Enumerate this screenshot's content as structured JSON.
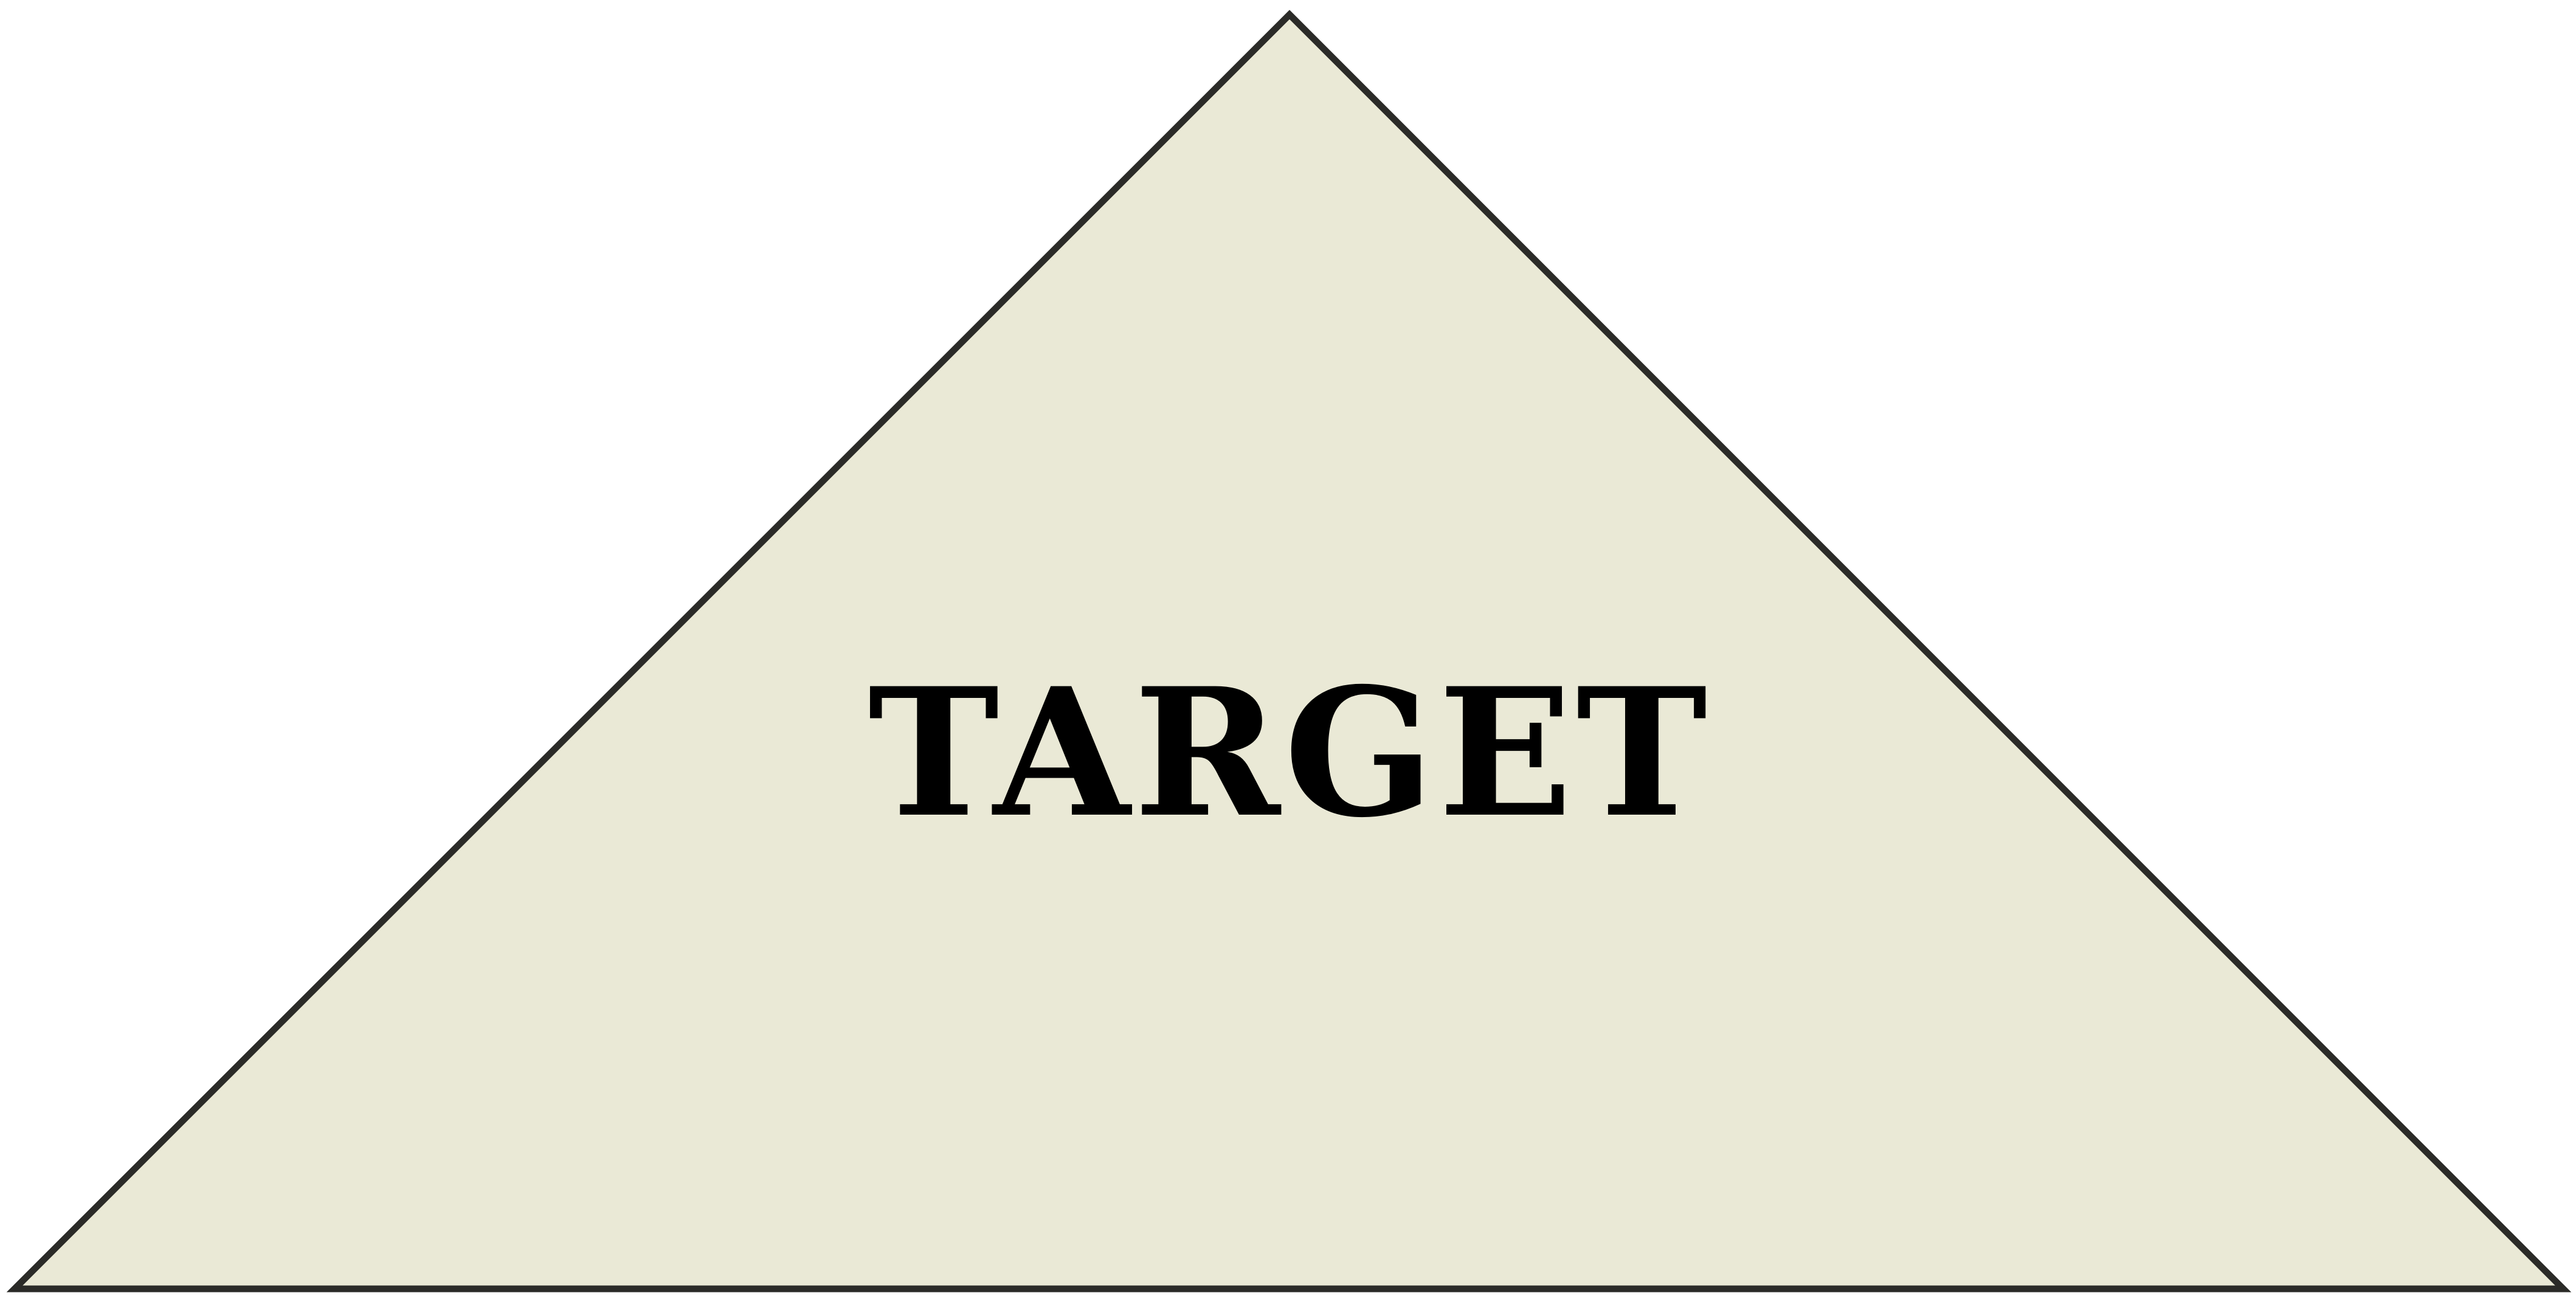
{
  "diagram": {
    "shape": "triangle",
    "label": "TARGET",
    "colors": {
      "fill": "#eae9d6",
      "stroke": "#2b2b28",
      "text": "#000000"
    }
  }
}
